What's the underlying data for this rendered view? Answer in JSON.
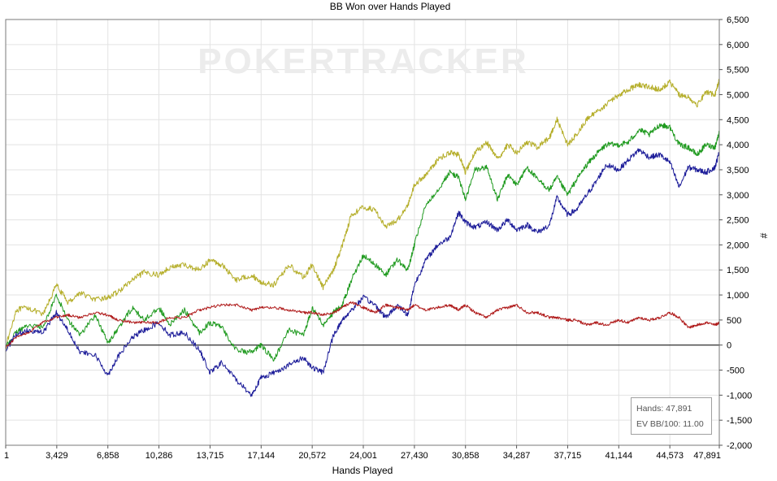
{
  "chart_data": {
    "type": "line",
    "title": "BB Won over Hands Played",
    "xlabel": "Hands Played",
    "ylabel": "#",
    "xlim": [
      1,
      47891
    ],
    "ylim": [
      -2000,
      6500
    ],
    "x_ticks": [
      1,
      3429,
      6858,
      10286,
      13715,
      17144,
      20572,
      24001,
      27430,
      30858,
      34287,
      37715,
      41144,
      44573,
      47891
    ],
    "x_tick_labels": [
      "1",
      "3,429",
      "6,858",
      "10,286",
      "13,715",
      "17,144",
      "20,572",
      "24,001",
      "27,430",
      "30,858",
      "34,287",
      "37,715",
      "41,144",
      "44,573",
      "47,891"
    ],
    "y_ticks": [
      -2000,
      -1500,
      -1000,
      -500,
      0,
      500,
      1000,
      1500,
      2000,
      2500,
      3000,
      3500,
      4000,
      4500,
      5000,
      5500,
      6000,
      6500
    ],
    "y_tick_labels": [
      "-2,000",
      "-1,500",
      "-1,000",
      "-500",
      "0",
      "500",
      "1,000",
      "1,500",
      "2,000",
      "2,500",
      "3,000",
      "3,500",
      "4,000",
      "4,500",
      "5,000",
      "5,500",
      "6,000",
      "6,500"
    ],
    "y_axis_side": "right",
    "grid": true,
    "zero_line": true,
    "watermark": "POKERTRACKER",
    "series": [
      {
        "color": "#b5ae2a",
        "x": [
          1,
          700,
          1500,
          2500,
          3400,
          4200,
          5000,
          6000,
          6858,
          7500,
          8500,
          9300,
          10286,
          11000,
          12000,
          13000,
          13715,
          14500,
          15500,
          16500,
          17144,
          18000,
          19000,
          20000,
          20572,
          21300,
          22000,
          22600,
          23200,
          24001,
          24800,
          25500,
          26300,
          27000,
          27430,
          28200,
          29000,
          29800,
          30400,
          30858,
          31500,
          32300,
          33000,
          33700,
          34287,
          35000,
          35700,
          36500,
          37000,
          37715,
          38300,
          39000,
          39600,
          40300,
          41144,
          41800,
          42500,
          43200,
          43900,
          44573,
          45200,
          45800,
          46400,
          47000,
          47600,
          47891
        ],
        "y": [
          -50,
          700,
          750,
          600,
          1200,
          850,
          1050,
          900,
          950,
          1050,
          1300,
          1450,
          1400,
          1550,
          1600,
          1500,
          1700,
          1600,
          1300,
          1400,
          1250,
          1200,
          1600,
          1350,
          1600,
          1150,
          1500,
          2000,
          2600,
          2750,
          2700,
          2350,
          2500,
          2800,
          3200,
          3400,
          3700,
          3850,
          3800,
          3450,
          3850,
          4050,
          3700,
          4000,
          3850,
          4050,
          3950,
          4150,
          4500,
          4000,
          4200,
          4500,
          4650,
          4800,
          5000,
          5100,
          5200,
          5150,
          5100,
          5250,
          5000,
          4950,
          4800,
          5050,
          5000,
          5300
        ]
      },
      {
        "color": "#1f9a1f",
        "x": [
          1,
          700,
          1500,
          2500,
          3400,
          4200,
          5000,
          6000,
          6858,
          7500,
          8500,
          9300,
          10286,
          11000,
          12000,
          13000,
          13715,
          14500,
          15500,
          16500,
          17144,
          18000,
          19000,
          20000,
          20572,
          21300,
          22000,
          22600,
          23200,
          24001,
          24800,
          25500,
          26300,
          27000,
          27430,
          28200,
          29000,
          29800,
          30400,
          30858,
          31500,
          32300,
          33000,
          33700,
          34287,
          35000,
          35700,
          36500,
          37000,
          37715,
          38300,
          39000,
          39600,
          40300,
          41144,
          41800,
          42500,
          43200,
          43900,
          44573,
          45200,
          45800,
          46400,
          47000,
          47600,
          47891
        ],
        "y": [
          -50,
          250,
          400,
          350,
          1000,
          500,
          200,
          600,
          50,
          300,
          750,
          500,
          750,
          400,
          700,
          250,
          450,
          350,
          -100,
          -150,
          0,
          -300,
          300,
          200,
          750,
          400,
          650,
          800,
          1300,
          1800,
          1600,
          1400,
          1700,
          1500,
          2000,
          2800,
          3100,
          3450,
          3350,
          2900,
          3500,
          3550,
          2900,
          3400,
          3200,
          3550,
          3300,
          3100,
          3350,
          3000,
          3300,
          3600,
          3800,
          4000,
          4000,
          4050,
          4300,
          4200,
          4400,
          4350,
          4000,
          3950,
          3800,
          4000,
          3950,
          4250
        ]
      },
      {
        "color": "#1c1c99",
        "x": [
          1,
          700,
          1500,
          2500,
          3400,
          4200,
          5000,
          6000,
          6858,
          7500,
          8500,
          9300,
          10286,
          11000,
          12000,
          13000,
          13715,
          14500,
          15500,
          16500,
          17144,
          18000,
          19000,
          20000,
          20572,
          21300,
          22000,
          22600,
          23200,
          24001,
          24800,
          25500,
          26300,
          27000,
          27430,
          28200,
          29000,
          29800,
          30400,
          30858,
          31500,
          32300,
          33000,
          33700,
          34287,
          35000,
          35700,
          36500,
          37000,
          37715,
          38300,
          39000,
          39600,
          40300,
          41144,
          41800,
          42500,
          43200,
          43900,
          44573,
          45200,
          45800,
          46400,
          47000,
          47600,
          47891
        ],
        "y": [
          -100,
          200,
          300,
          250,
          650,
          300,
          -150,
          -200,
          -600,
          -250,
          150,
          300,
          450,
          200,
          250,
          -100,
          -550,
          -350,
          -700,
          -1000,
          -650,
          -550,
          -400,
          -250,
          -450,
          -550,
          200,
          500,
          700,
          950,
          800,
          550,
          800,
          600,
          1200,
          1700,
          2000,
          2150,
          2650,
          2450,
          2350,
          2450,
          2300,
          2500,
          2300,
          2400,
          2250,
          2400,
          2950,
          2600,
          2700,
          3000,
          3250,
          3600,
          3500,
          3700,
          3900,
          3750,
          3800,
          3650,
          3150,
          3550,
          3500,
          3450,
          3550,
          3850
        ]
      },
      {
        "color": "#b01c1c",
        "x": [
          1,
          700,
          1500,
          2500,
          3400,
          4200,
          5000,
          6000,
          6858,
          7500,
          8500,
          9300,
          10286,
          11000,
          12000,
          13000,
          13715,
          14500,
          15500,
          16500,
          17144,
          18000,
          19000,
          20000,
          20572,
          21300,
          22000,
          22600,
          23200,
          24001,
          24800,
          25500,
          26300,
          27000,
          27430,
          28200,
          29000,
          29800,
          30400,
          30858,
          31500,
          32300,
          33000,
          33700,
          34287,
          35000,
          35700,
          36500,
          37000,
          37715,
          38300,
          39000,
          39600,
          40300,
          41144,
          41800,
          42500,
          43200,
          43900,
          44573,
          45200,
          45800,
          46400,
          47000,
          47600,
          47891
        ],
        "y": [
          -50,
          150,
          250,
          450,
          550,
          600,
          550,
          650,
          600,
          500,
          450,
          450,
          450,
          550,
          550,
          700,
          750,
          800,
          800,
          700,
          750,
          750,
          700,
          650,
          650,
          600,
          650,
          750,
          850,
          750,
          650,
          800,
          750,
          700,
          800,
          700,
          750,
          800,
          700,
          800,
          650,
          550,
          700,
          750,
          800,
          650,
          650,
          550,
          550,
          500,
          500,
          400,
          450,
          400,
          500,
          450,
          550,
          500,
          550,
          650,
          550,
          350,
          400,
          450,
          400,
          450
        ]
      }
    ],
    "info_box": {
      "hands_label": "Hands: 47,891",
      "ev_label": "EV BB/100: 11.00"
    }
  }
}
